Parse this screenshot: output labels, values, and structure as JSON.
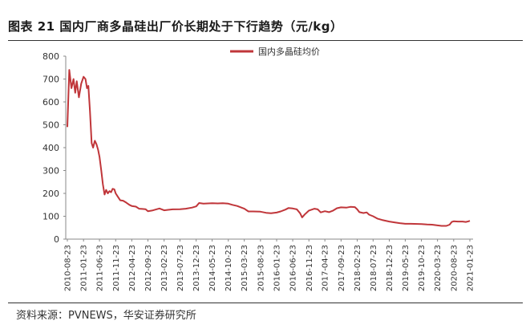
{
  "figure": {
    "title": "图表 21 国内厂商多晶硅出厂价长期处于下行趋势（元/kg）",
    "source": "资料来源：PVNEWS，华安证券研究所"
  },
  "colors": {
    "series": "#c0363a",
    "axis": "#888888",
    "text": "#333333"
  },
  "chart_data": {
    "type": "line",
    "title": "",
    "xlabel": "",
    "ylabel": "",
    "ylim": [
      0,
      800
    ],
    "yticks": [
      0,
      100,
      200,
      300,
      400,
      500,
      600,
      700,
      800
    ],
    "xticks": [
      "2010-08-23",
      "2011-01-23",
      "2011-06-23",
      "2011-11-23",
      "2012-04-23",
      "2012-09-23",
      "2013-02-23",
      "2013-07-23",
      "2013-12-23",
      "2014-05-23",
      "2014-10-23",
      "2015-03-23",
      "2015-08-23",
      "2016-01-23",
      "2016-06-23",
      "2016-11-23",
      "2017-04-23",
      "2017-09-23",
      "2018-02-23",
      "2018-07-23",
      "2018-12-23",
      "2019-05-23",
      "2019-10-23",
      "2020-03-23",
      "2020-08-23",
      "2021-01-23"
    ],
    "grid": false,
    "legend_position": "top-right",
    "series": [
      {
        "name": "国内多晶硅均价",
        "points": [
          [
            "2010-08-23",
            490
          ],
          [
            "2010-09-10",
            740
          ],
          [
            "2010-10-01",
            660
          ],
          [
            "2010-10-20",
            700
          ],
          [
            "2010-11-05",
            640
          ],
          [
            "2010-11-20",
            690
          ],
          [
            "2010-12-10",
            620
          ],
          [
            "2011-01-01",
            680
          ],
          [
            "2011-01-23",
            710
          ],
          [
            "2011-02-10",
            700
          ],
          [
            "2011-02-25",
            660
          ],
          [
            "2011-03-10",
            670
          ],
          [
            "2011-03-25",
            560
          ],
          [
            "2011-04-10",
            420
          ],
          [
            "2011-04-23",
            400
          ],
          [
            "2011-05-10",
            430
          ],
          [
            "2011-05-25",
            415
          ],
          [
            "2011-06-10",
            390
          ],
          [
            "2011-06-23",
            360
          ],
          [
            "2011-07-10",
            300
          ],
          [
            "2011-07-25",
            240
          ],
          [
            "2011-08-10",
            195
          ],
          [
            "2011-08-25",
            215
          ],
          [
            "2011-09-10",
            200
          ],
          [
            "2011-09-25",
            210
          ],
          [
            "2011-10-10",
            205
          ],
          [
            "2011-10-25",
            220
          ],
          [
            "2011-11-10",
            218
          ],
          [
            "2011-11-23",
            200
          ],
          [
            "2011-12-10",
            188
          ],
          [
            "2012-01-05",
            170
          ],
          [
            "2012-02-01",
            168
          ],
          [
            "2012-03-01",
            160
          ],
          [
            "2012-04-01",
            150
          ],
          [
            "2012-04-23",
            145
          ],
          [
            "2012-06-01",
            142
          ],
          [
            "2012-07-01",
            133
          ],
          [
            "2012-08-01",
            132
          ],
          [
            "2012-09-01",
            131
          ],
          [
            "2012-09-23",
            122
          ],
          [
            "2012-11-01",
            125
          ],
          [
            "2012-12-10",
            130
          ],
          [
            "2013-01-10",
            134
          ],
          [
            "2013-02-23",
            126
          ],
          [
            "2013-04-01",
            128
          ],
          [
            "2013-05-15",
            130
          ],
          [
            "2013-07-23",
            131
          ],
          [
            "2013-09-15",
            133
          ],
          [
            "2013-11-15",
            138
          ],
          [
            "2013-12-23",
            143
          ],
          [
            "2014-01-20",
            158
          ],
          [
            "2014-03-01",
            155
          ],
          [
            "2014-05-23",
            157
          ],
          [
            "2014-07-15",
            156
          ],
          [
            "2014-09-01",
            157
          ],
          [
            "2014-10-23",
            155
          ],
          [
            "2014-12-01",
            150
          ],
          [
            "2015-01-15",
            145
          ],
          [
            "2015-03-23",
            133
          ],
          [
            "2015-05-01",
            121
          ],
          [
            "2015-06-15",
            121
          ],
          [
            "2015-08-23",
            120
          ],
          [
            "2015-10-15",
            115
          ],
          [
            "2015-12-01",
            113
          ],
          [
            "2016-01-23",
            116
          ],
          [
            "2016-03-01",
            121
          ],
          [
            "2016-04-15",
            129
          ],
          [
            "2016-05-15",
            136
          ],
          [
            "2016-06-23",
            134
          ],
          [
            "2016-08-01",
            130
          ],
          [
            "2016-09-01",
            113
          ],
          [
            "2016-09-20",
            95
          ],
          [
            "2016-10-15",
            108
          ],
          [
            "2016-11-23",
            125
          ],
          [
            "2017-01-15",
            133
          ],
          [
            "2017-02-15",
            130
          ],
          [
            "2017-03-15",
            117
          ],
          [
            "2017-04-23",
            122
          ],
          [
            "2017-06-01",
            118
          ],
          [
            "2017-07-10",
            125
          ],
          [
            "2017-08-15",
            135
          ],
          [
            "2017-09-23",
            139
          ],
          [
            "2017-11-15",
            138
          ],
          [
            "2017-12-20",
            141
          ],
          [
            "2018-02-01",
            140
          ],
          [
            "2018-02-23",
            130
          ],
          [
            "2018-03-15",
            118
          ],
          [
            "2018-04-23",
            114
          ],
          [
            "2018-05-23",
            117
          ],
          [
            "2018-06-15",
            107
          ],
          [
            "2018-07-23",
            100
          ],
          [
            "2018-09-01",
            90
          ],
          [
            "2018-10-15",
            84
          ],
          [
            "2018-12-23",
            77
          ],
          [
            "2019-02-15",
            73
          ],
          [
            "2019-04-01",
            70
          ],
          [
            "2019-05-23",
            67
          ],
          [
            "2019-07-15",
            67
          ],
          [
            "2019-10-23",
            66
          ],
          [
            "2019-12-15",
            64
          ],
          [
            "2020-02-01",
            63
          ],
          [
            "2020-03-23",
            60
          ],
          [
            "2020-05-01",
            58
          ],
          [
            "2020-06-15",
            58
          ],
          [
            "2020-07-15",
            63
          ],
          [
            "2020-08-05",
            75
          ],
          [
            "2020-08-23",
            78
          ],
          [
            "2020-10-01",
            77
          ],
          [
            "2020-11-15",
            77
          ],
          [
            "2020-12-15",
            75
          ],
          [
            "2021-01-10",
            78
          ],
          [
            "2021-01-23",
            80
          ]
        ]
      }
    ]
  }
}
